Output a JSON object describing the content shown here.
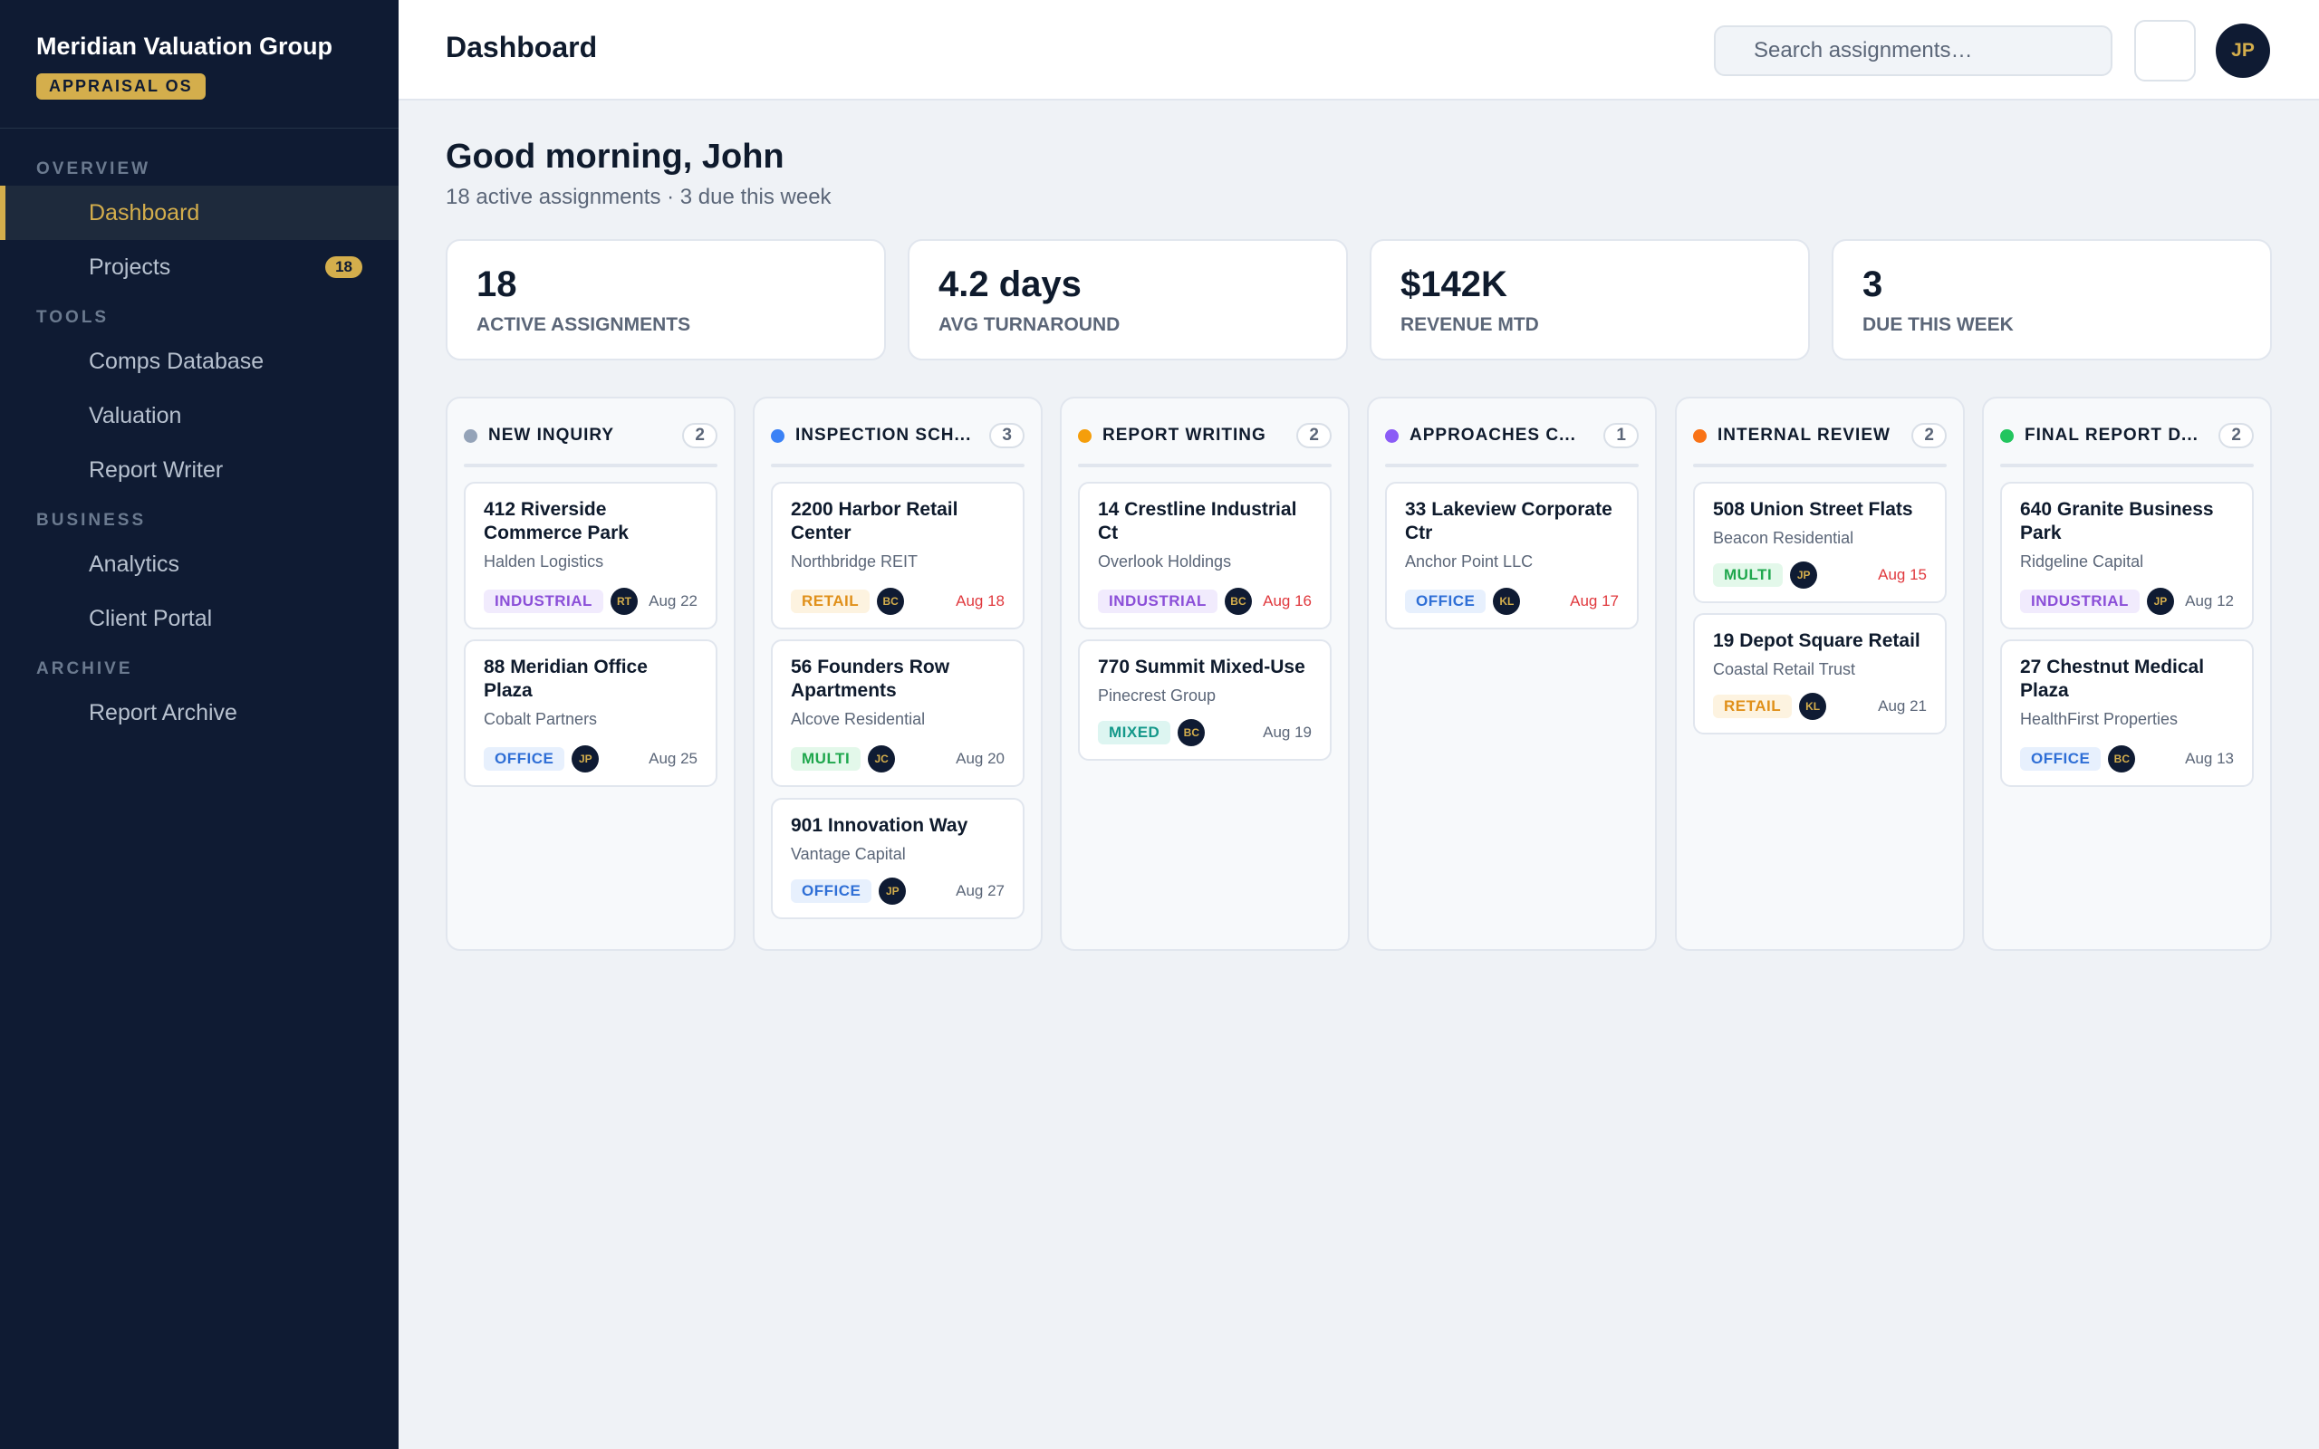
{
  "app": {
    "name": "Meridian Valuation Group",
    "badge": "APPRAISAL OS"
  },
  "sidebar": {
    "sections": [
      "OVERVIEW",
      "TOOLS",
      "BUSINESS",
      "ARCHIVE"
    ],
    "items": [
      {
        "label": "Dashboard",
        "active": true
      },
      {
        "label": "Projects",
        "count": "18"
      },
      {
        "label": "Comps Database"
      },
      {
        "label": "Valuation"
      },
      {
        "label": "Report Writer"
      },
      {
        "label": "Analytics"
      },
      {
        "label": "Client Portal"
      },
      {
        "label": "Report Archive"
      }
    ]
  },
  "header": {
    "title": "Dashboard",
    "search_placeholder": "Search assignments…",
    "user_initials": "JP"
  },
  "greeting": {
    "title": "Good morning, John",
    "subtitle": "18 active assignments · 3 due this week"
  },
  "stats": [
    {
      "value": "18",
      "label": "ACTIVE ASSIGNMENTS"
    },
    {
      "value": "4.2 days",
      "label": "AVG TURNAROUND"
    },
    {
      "value": "$142K",
      "label": "REVENUE MTD"
    },
    {
      "value": "3",
      "label": "DUE THIS WEEK"
    }
  ],
  "colors": {
    "accent": "#d4ae4c",
    "navy": "#0f1b33",
    "overdue": "#e0393e"
  },
  "board": {
    "columns": [
      {
        "title": "NEW INQUIRY",
        "display_title": "NEW INQUIRY",
        "count": "2",
        "dot_color": "#94a3b8",
        "cards": [
          {
            "title": "412 Riverside Commerce Park",
            "client": "Halden Logistics",
            "tag": "INDUSTRIAL",
            "initials": "RT",
            "due": "Aug 22",
            "overdue": false
          },
          {
            "title": "88 Meridian Office Plaza",
            "client": "Cobalt Partners",
            "tag": "OFFICE",
            "initials": "JP",
            "due": "Aug 25",
            "overdue": false
          }
        ]
      },
      {
        "title": "INSPECTION SCHEDULED",
        "display_title": "INSPECTION SCH...",
        "count": "3",
        "dot_color": "#3b82f6",
        "cards": [
          {
            "title": "2200 Harbor Retail Center",
            "client": "Northbridge REIT",
            "tag": "RETAIL",
            "initials": "BC",
            "due": "Aug 18",
            "overdue": true
          },
          {
            "title": "56 Founders Row Apartments",
            "client": "Alcove Residential",
            "tag": "MULTI",
            "initials": "JC",
            "due": "Aug 20",
            "overdue": false
          },
          {
            "title": "901 Innovation Way",
            "client": "Vantage Capital",
            "tag": "OFFICE",
            "initials": "JP",
            "due": "Aug 27",
            "overdue": false
          }
        ]
      },
      {
        "title": "REPORT WRITING",
        "display_title": "REPORT WRITING",
        "count": "2",
        "dot_color": "#f59e0b",
        "cards": [
          {
            "title": "14 Crestline Industrial Ct",
            "client": "Overlook Holdings",
            "tag": "INDUSTRIAL",
            "initials": "BC",
            "due": "Aug 16",
            "overdue": true
          },
          {
            "title": "770 Summit Mixed-Use",
            "client": "Pinecrest Group",
            "tag": "MIXED",
            "initials": "BC",
            "due": "Aug 19",
            "overdue": false
          }
        ]
      },
      {
        "title": "APPROACHES COMPLETE",
        "display_title": "APPROACHES C...",
        "count": "1",
        "dot_color": "#8b5cf6",
        "cards": [
          {
            "title": "33 Lakeview Corporate Ctr",
            "client": "Anchor Point LLC",
            "tag": "OFFICE",
            "initials": "KL",
            "due": "Aug 17",
            "overdue": true
          }
        ]
      },
      {
        "title": "INTERNAL REVIEW",
        "display_title": "INTERNAL REVIEW",
        "count": "2",
        "dot_color": "#f97316",
        "cards": [
          {
            "title": "508 Union Street Flats",
            "client": "Beacon Residential",
            "tag": "MULTI",
            "initials": "JP",
            "due": "Aug 15",
            "overdue": true
          },
          {
            "title": "19 Depot Square Retail",
            "client": "Coastal Retail Trust",
            "tag": "RETAIL",
            "initials": "KL",
            "due": "Aug 21",
            "overdue": false
          }
        ]
      },
      {
        "title": "FINAL REPORT DELIVERED",
        "display_title": "FINAL REPORT D...",
        "count": "2",
        "dot_color": "#22c55e",
        "cards": [
          {
            "title": "640 Granite Business Park",
            "client": "Ridgeline Capital",
            "tag": "INDUSTRIAL",
            "initials": "JP",
            "due": "Aug 12",
            "overdue": false
          },
          {
            "title": "27 Chestnut Medical Plaza",
            "client": "HealthFirst Properties",
            "tag": "OFFICE",
            "initials": "BC",
            "due": "Aug 13",
            "overdue": false
          }
        ]
      }
    ]
  }
}
